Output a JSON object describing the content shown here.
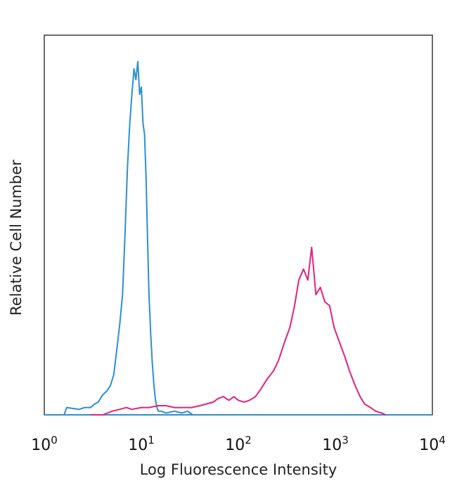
{
  "chart_data": {
    "type": "line",
    "xlabel": "Log Fluorescence Intensity",
    "ylabel": "Relative Cell Number",
    "x_scale": "log10",
    "xlim": [
      1,
      10000
    ],
    "ylim": [
      0,
      1
    ],
    "x_tick_labels": [
      {
        "base": "10",
        "exp": "0"
      },
      {
        "base": "10",
        "exp": "1"
      },
      {
        "base": "10",
        "exp": "2"
      },
      {
        "base": "10",
        "exp": "3"
      },
      {
        "base": "10",
        "exp": "4"
      }
    ],
    "grid": false,
    "series": [
      {
        "color": "#2b8fd6",
        "x": [
          1.6,
          1.7,
          2.3,
          2.6,
          3.0,
          3.3,
          3.6,
          4.0,
          4.4,
          4.8,
          5.2,
          5.6,
          6.0,
          6.4,
          6.8,
          7.2,
          7.6,
          8.0,
          8.4,
          8.8,
          9.2,
          9.6,
          10.0,
          10.4,
          10.8,
          11.2,
          11.6,
          12.0,
          12.5,
          13.0,
          13.5,
          14.0,
          14.5,
          15.0,
          16.0,
          18.0,
          22.0,
          26.0,
          30.0,
          34.0
        ],
        "y": [
          0.0,
          0.02,
          0.015,
          0.02,
          0.02,
          0.03,
          0.035,
          0.055,
          0.065,
          0.08,
          0.11,
          0.18,
          0.25,
          0.33,
          0.5,
          0.68,
          0.8,
          0.88,
          0.95,
          0.92,
          0.97,
          0.88,
          0.9,
          0.8,
          0.77,
          0.65,
          0.48,
          0.33,
          0.22,
          0.14,
          0.08,
          0.04,
          0.02,
          0.01,
          0.01,
          0.005,
          0.01,
          0.005,
          0.01,
          0.0
        ]
      },
      {
        "color": "#e0237e",
        "x": [
          3.0,
          4.0,
          5.0,
          6.0,
          7.0,
          8.0,
          10.0,
          12.0,
          15.0,
          18.0,
          22.0,
          27.0,
          33.0,
          40.0,
          47.0,
          55.0,
          62.0,
          70.0,
          80.0,
          90.0,
          100.0,
          115.0,
          130.0,
          150.0,
          170.0,
          200.0,
          230.0,
          260.0,
          300.0,
          340.0,
          380.0,
          420.0,
          470.0,
          520.0,
          570.0,
          630.0,
          700.0,
          780.0,
          870.0,
          970.0,
          1100.0,
          1250.0,
          1400.0,
          1600.0,
          1800.0,
          2000.0,
          2300.0,
          2600.0,
          3000.0,
          3300.0
        ],
        "y": [
          0.0,
          0.0,
          0.01,
          0.015,
          0.02,
          0.015,
          0.02,
          0.02,
          0.025,
          0.025,
          0.02,
          0.02,
          0.02,
          0.025,
          0.03,
          0.035,
          0.045,
          0.05,
          0.04,
          0.05,
          0.04,
          0.035,
          0.04,
          0.05,
          0.07,
          0.1,
          0.12,
          0.15,
          0.2,
          0.24,
          0.3,
          0.37,
          0.4,
          0.37,
          0.46,
          0.33,
          0.35,
          0.31,
          0.3,
          0.24,
          0.2,
          0.16,
          0.12,
          0.08,
          0.05,
          0.03,
          0.02,
          0.01,
          0.005,
          0.0
        ]
      }
    ]
  }
}
